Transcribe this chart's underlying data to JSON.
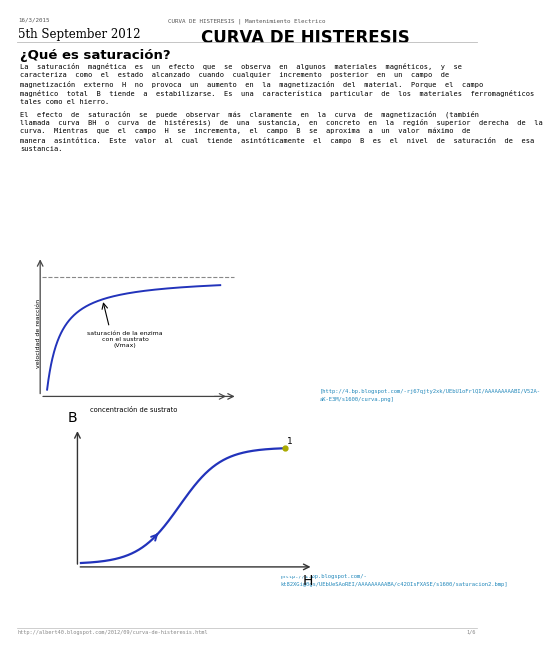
{
  "title_small": "16/3/2015",
  "title_center_small": "CURVA DE HISTERESIS | Mantenimiento Electrico",
  "title_date": "5th September 2012",
  "title_main": "CURVA DE HISTERESIS",
  "section_title": "¿Qué es saturación?",
  "para1_lines": [
    "La  saturación  magnética  es  un  efecto  que  se  observa  en  algunos  materiales  magnéticos,  y  se",
    "caracteriza  como  el  estado  alcanzado  cuando  cualquier  incremento  posterior  en  un  campo  de",
    "magnetización  externo  H  no  provoca  un  aumento  en  la  magnetización  del  material.  Porque  el  campo",
    "magnético  total  B  tiende  a  estabilizarse.  Es  una  característica  particular  de  los  materiales  ferromagnéticos",
    "tales como el hierro."
  ],
  "para2_lines": [
    "El  efecto  de  saturación  se  puede  observar  más  claramente  en  la  curva  de  magnetización  (también",
    "llamada  curva  BH  o  curva  de  histéresis)  de  una  sustancia,  en  concreto  en  la  región  superior  derecha  de  la",
    "curva.  Mientras  que  el  campo  H  se  incrementa,  el  campo  B  se  aproxima  a  un  valor  máximo  de",
    "manera  asintótica.  Este  valor  al  cual  tiende  asintóticamente  el  campo  B  es  el  nivel  de  saturación  de  esa",
    "sustancia."
  ],
  "url1_lines": [
    "[http://4.bp.blogspot.com/-rj67qjty2xk/UEbU1oFrlQI/AAAAAAAAABI/V52A-",
    "aK-E3M/s1600/curva.png]"
  ],
  "url2_lines": [
    "[http://2.bp.blogspot.com/-",
    "kt82XGig0gs/UEbUeSAoREI/AAAAAAAAABA/c42OIsFXASE/s1600/saturacion2.bmp]"
  ],
  "footer": "http://albert40.blogspot.com/2012/09/curva-de-histeresis.html",
  "footer_right": "1/6",
  "curve1_xlabel": "concentración de sustrato",
  "curve1_ylabel": "velocidad de reacción",
  "curve1_annotation": "saturación de la enzima\ncon el sustrato\n(Vmax)",
  "curve2_xlabel": "H",
  "curve2_ylabel": "B",
  "curve2_point_label": "1",
  "bg_color": "#ffffff",
  "text_color": "#000000",
  "text_color2": "#444444",
  "header_line_color": "#cccccc",
  "curve_color": "#2233bb",
  "url_color": "#2288bb",
  "footer_color": "#888888",
  "header_small_color": "#555555"
}
